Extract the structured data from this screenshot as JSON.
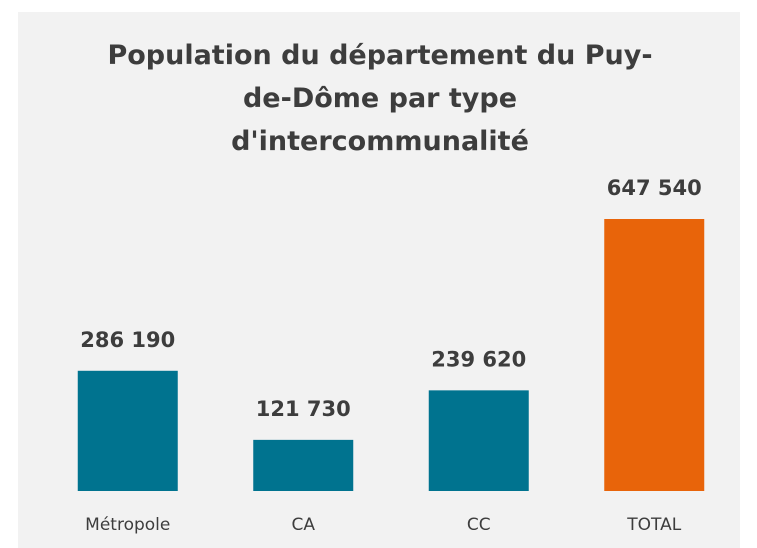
{
  "chart_data": {
    "type": "bar",
    "title": "Population du département du Puy-de-Dôme par type d'intercommunalité",
    "categories": [
      "Métropole",
      "CA",
      "CC",
      "TOTAL"
    ],
    "values": [
      286190,
      121730,
      239620,
      647540
    ],
    "value_labels": [
      "286 190",
      "121 730",
      "239 620",
      "647 540"
    ],
    "colors": [
      "#00738f",
      "#00738f",
      "#00738f",
      "#e8640a"
    ]
  }
}
